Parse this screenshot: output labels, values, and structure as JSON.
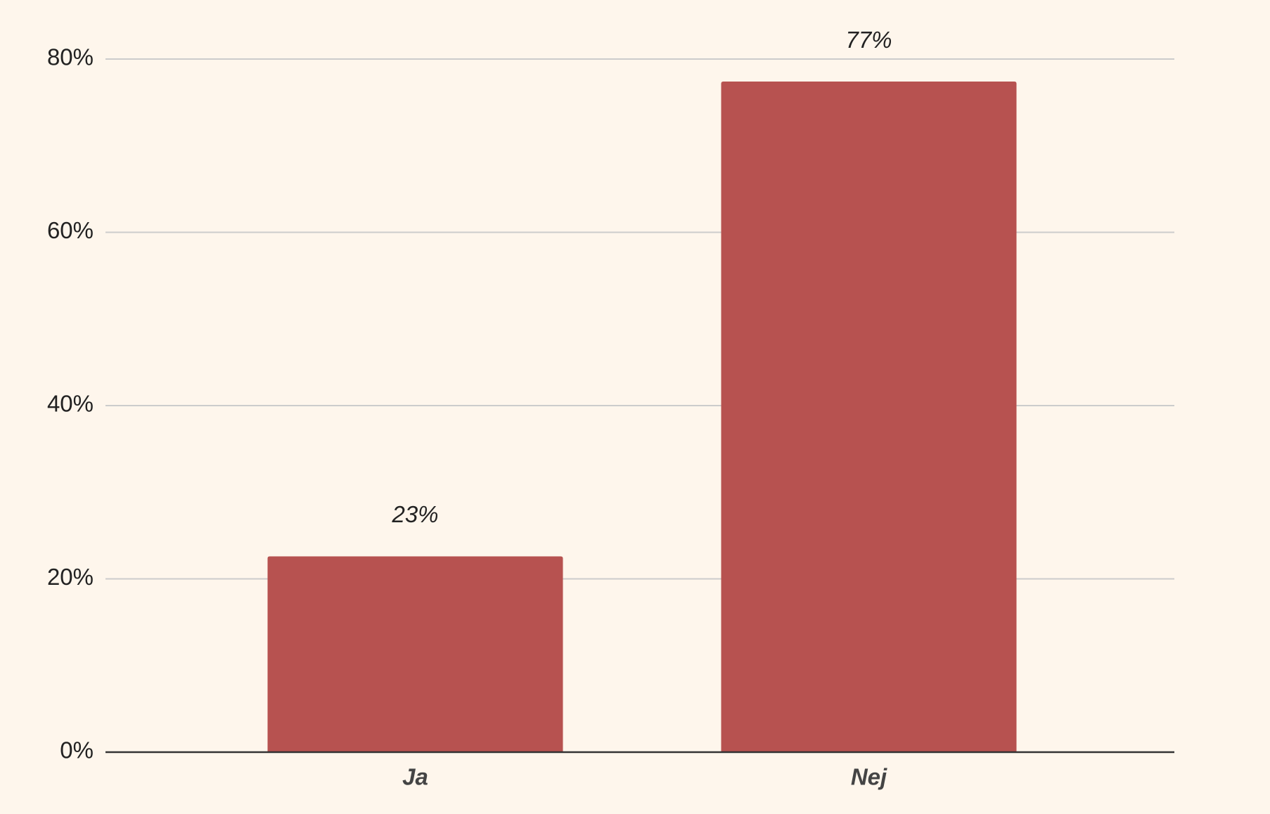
{
  "chart_data": {
    "type": "bar",
    "categories": [
      "Ja",
      "Nej"
    ],
    "values": [
      22.6,
      77.4
    ],
    "value_labels": [
      "23%",
      "77%"
    ],
    "color": "#b75250",
    "ylim": [
      0,
      80
    ],
    "yticks": [
      {
        "value": 0,
        "label": "0%"
      },
      {
        "value": 20,
        "label": "20%"
      },
      {
        "value": 40,
        "label": "40%"
      },
      {
        "value": 60,
        "label": "60%"
      },
      {
        "value": 80,
        "label": "80%"
      }
    ],
    "grid": true
  }
}
